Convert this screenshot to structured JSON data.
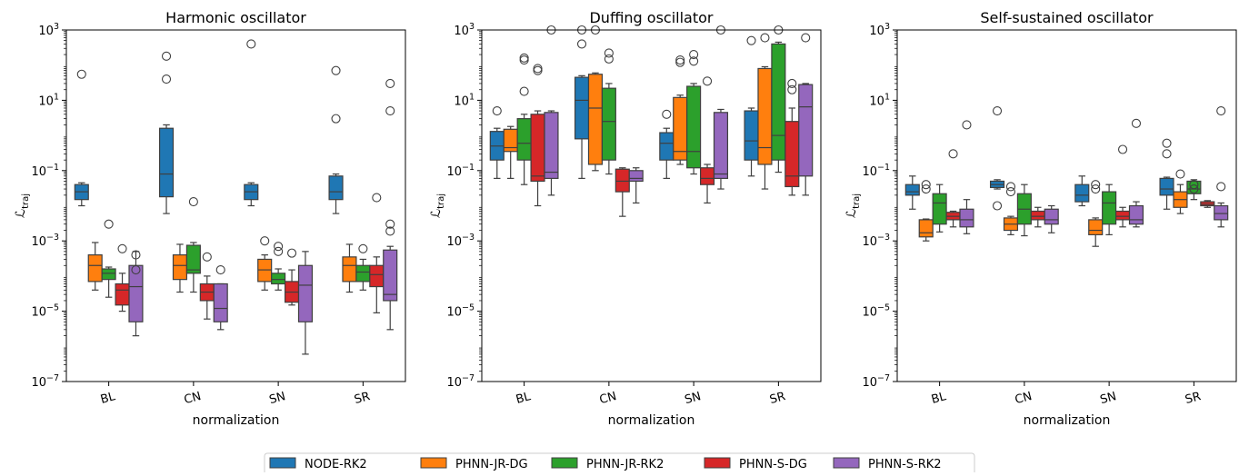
{
  "xlabel": "normalization",
  "ylabel_main": "ℒ",
  "ylabel_sub": "traj",
  "categories": [
    "BL",
    "CN",
    "SN",
    "SR"
  ],
  "yticks": [
    {
      "mant": "10",
      "exp": "3"
    },
    {
      "mant": "10",
      "exp": "1"
    },
    {
      "mant": "10",
      "exp": "−1"
    },
    {
      "mant": "10",
      "exp": "−3"
    },
    {
      "mant": "10",
      "exp": "−5"
    },
    {
      "mant": "10",
      "exp": "−7"
    }
  ],
  "legend": [
    {
      "label": "NODE-RK2",
      "color": "#1f77b4"
    },
    {
      "label": "PHNN-JR-DG",
      "color": "#ff7f0e"
    },
    {
      "label": "PHNN-JR-RK2",
      "color": "#2ca02c"
    },
    {
      "label": "PHNN-S-DG",
      "color": "#d62728"
    },
    {
      "label": "PHNN-S-RK2",
      "color": "#9467bd"
    }
  ],
  "chart_data": [
    {
      "type": "box",
      "title": "Harmonic oscillator",
      "xlabel": "normalization",
      "ylabel": "ℒ_traj",
      "yscale": "log",
      "ylim": [
        1e-07,
        1000
      ],
      "categories": [
        "BL",
        "CN",
        "SN",
        "SR"
      ],
      "series": [
        {
          "name": "NODE-RK2",
          "boxes": [
            {
              "whislo": 0.01,
              "q1": 0.015,
              "med": 0.025,
              "q3": 0.04,
              "whishi": 0.045,
              "fliers": [
                55
              ]
            },
            {
              "whislo": 0.006,
              "q1": 0.018,
              "med": 0.08,
              "q3": 1.6,
              "whishi": 2,
              "fliers": [
                40,
                180
              ]
            },
            {
              "whislo": 0.01,
              "q1": 0.015,
              "med": 0.025,
              "q3": 0.04,
              "whishi": 0.045,
              "fliers": [
                400
              ]
            },
            {
              "whislo": 0.006,
              "q1": 0.015,
              "med": 0.025,
              "q3": 0.07,
              "whishi": 0.08,
              "fliers": [
                3,
                70
              ]
            }
          ]
        },
        {
          "name": "PHNN-JR-DG",
          "boxes": [
            {
              "whislo": 4e-05,
              "q1": 7e-05,
              "med": 0.0002,
              "q3": 0.0004,
              "whishi": 0.0009,
              "fliers": []
            },
            {
              "whislo": 3.5e-05,
              "q1": 8e-05,
              "med": 0.0002,
              "q3": 0.0004,
              "whishi": 0.0008,
              "fliers": []
            },
            {
              "whislo": 4e-05,
              "q1": 7e-05,
              "med": 0.00015,
              "q3": 0.0003,
              "whishi": 0.0004,
              "fliers": [
                0.001
              ]
            },
            {
              "whislo": 3.5e-05,
              "q1": 7e-05,
              "med": 0.0002,
              "q3": 0.00035,
              "whishi": 0.0008,
              "fliers": []
            }
          ]
        },
        {
          "name": "PHNN-JR-RK2",
          "boxes": [
            {
              "whislo": 2.5e-05,
              "q1": 8e-05,
              "med": 0.00012,
              "q3": 0.00016,
              "whishi": 0.00018,
              "fliers": [
                0.003
              ]
            },
            {
              "whislo": 3.5e-05,
              "q1": 0.00012,
              "med": 0.00015,
              "q3": 0.00075,
              "whishi": 0.0009,
              "fliers": [
                0.013
              ]
            },
            {
              "whislo": 4e-05,
              "q1": 6e-05,
              "med": 8e-05,
              "q3": 0.00012,
              "whishi": 0.00016,
              "fliers": [
                0.0007,
                0.0005
              ]
            },
            {
              "whislo": 4e-05,
              "q1": 7e-05,
              "med": 0.00013,
              "q3": 0.0002,
              "whishi": 0.0003,
              "fliers": [
                0.0006
              ]
            }
          ]
        },
        {
          "name": "PHNN-S-DG",
          "boxes": [
            {
              "whislo": 1e-05,
              "q1": 1.5e-05,
              "med": 4e-05,
              "q3": 6e-05,
              "whishi": 0.00012,
              "fliers": [
                0.0006
              ]
            },
            {
              "whislo": 6e-06,
              "q1": 2e-05,
              "med": 3.5e-05,
              "q3": 6e-05,
              "whishi": 0.0001,
              "fliers": [
                0.00035
              ]
            },
            {
              "whislo": 1.5e-05,
              "q1": 1.8e-05,
              "med": 3.5e-05,
              "q3": 7e-05,
              "whishi": 0.00015,
              "fliers": [
                0.00045
              ]
            },
            {
              "whislo": 9e-06,
              "q1": 5e-05,
              "med": 0.00011,
              "q3": 0.0002,
              "whishi": 0.00035,
              "fliers": [
                0.017
              ]
            }
          ]
        },
        {
          "name": "PHNN-S-RK2",
          "boxes": [
            {
              "whislo": 2e-06,
              "q1": 5e-06,
              "med": 5e-05,
              "q3": 0.0002,
              "whishi": 0.0005,
              "fliers": [
                0.00015,
                0.0004
              ]
            },
            {
              "whislo": 3e-06,
              "q1": 5e-06,
              "med": 1.2e-05,
              "q3": 6e-05,
              "whishi": 6e-05,
              "fliers": [
                0.00015
              ]
            },
            {
              "whislo": 6e-07,
              "q1": 5e-06,
              "med": 5.5e-05,
              "q3": 0.0002,
              "whishi": 0.0005,
              "fliers": []
            },
            {
              "whislo": 3e-06,
              "q1": 2e-05,
              "med": 3e-05,
              "q3": 0.00055,
              "whishi": 0.0007,
              "fliers": [
                0.003,
                0.0019,
                5,
                30
              ]
            }
          ]
        }
      ]
    },
    {
      "type": "box",
      "title": "Duffing oscillator",
      "xlabel": "normalization",
      "ylabel": "ℒ_traj",
      "yscale": "log",
      "ylim": [
        1e-07,
        1000
      ],
      "categories": [
        "BL",
        "CN",
        "SN",
        "SR"
      ],
      "series": [
        {
          "name": "NODE-RK2",
          "boxes": [
            {
              "whislo": 0.06,
              "q1": 0.2,
              "med": 0.5,
              "q3": 1.3,
              "whishi": 1.6,
              "fliers": [
                5
              ]
            },
            {
              "whislo": 0.06,
              "q1": 0.8,
              "med": 10,
              "q3": 45,
              "whishi": 50,
              "fliers": [
                400,
                1000
              ]
            },
            {
              "whislo": 0.06,
              "q1": 0.2,
              "med": 0.6,
              "q3": 1.2,
              "whishi": 1.6,
              "fliers": [
                4
              ]
            },
            {
              "whislo": 0.07,
              "q1": 0.2,
              "med": 0.7,
              "q3": 5,
              "whishi": 6,
              "fliers": [
                500
              ]
            }
          ]
        },
        {
          "name": "PHNN-JR-DG",
          "boxes": [
            {
              "whislo": 0.06,
              "q1": 0.35,
              "med": 0.45,
              "q3": 1.5,
              "whishi": 1.8,
              "fliers": []
            },
            {
              "whislo": 0.1,
              "q1": 0.15,
              "med": 6,
              "q3": 55,
              "whishi": 60,
              "fliers": [
                1000
              ]
            },
            {
              "whislo": 0.15,
              "q1": 0.2,
              "med": 0.35,
              "q3": 12,
              "whishi": 14,
              "fliers": [
                120,
                140
              ]
            },
            {
              "whislo": 0.03,
              "q1": 0.15,
              "med": 0.45,
              "q3": 80,
              "whishi": 90,
              "fliers": [
                600
              ]
            }
          ]
        },
        {
          "name": "PHNN-JR-RK2",
          "boxes": [
            {
              "whislo": 0.04,
              "q1": 0.2,
              "med": 0.6,
              "q3": 3,
              "whishi": 4,
              "fliers": [
                18,
                140,
                160
              ]
            },
            {
              "whislo": 0.08,
              "q1": 0.2,
              "med": 2.5,
              "q3": 22,
              "whishi": 30,
              "fliers": [
                220,
                150
              ]
            },
            {
              "whislo": 0.08,
              "q1": 0.12,
              "med": 0.35,
              "q3": 25,
              "whishi": 30,
              "fliers": [
                130,
                200
              ]
            },
            {
              "whislo": 0.09,
              "q1": 0.2,
              "med": 1,
              "q3": 400,
              "whishi": 450,
              "fliers": [
                1000
              ]
            }
          ]
        },
        {
          "name": "PHNN-S-DG",
          "boxes": [
            {
              "whislo": 0.01,
              "q1": 0.05,
              "med": 0.07,
              "q3": 4,
              "whishi": 5,
              "fliers": [
                70,
                80
              ]
            },
            {
              "whislo": 0.005,
              "q1": 0.025,
              "med": 0.05,
              "q3": 0.11,
              "whishi": 0.12,
              "fliers": []
            },
            {
              "whislo": 0.012,
              "q1": 0.04,
              "med": 0.06,
              "q3": 0.12,
              "whishi": 0.15,
              "fliers": [
                35
              ]
            },
            {
              "whislo": 0.02,
              "q1": 0.035,
              "med": 0.07,
              "q3": 2.5,
              "whishi": 6,
              "fliers": [
                30,
                20
              ]
            }
          ]
        },
        {
          "name": "PHNN-S-RK2",
          "boxes": [
            {
              "whislo": 0.02,
              "q1": 0.06,
              "med": 0.09,
              "q3": 4.5,
              "whishi": 5,
              "fliers": [
                1000
              ]
            },
            {
              "whislo": 0.012,
              "q1": 0.05,
              "med": 0.06,
              "q3": 0.1,
              "whishi": 0.12,
              "fliers": []
            },
            {
              "whislo": 0.03,
              "q1": 0.06,
              "med": 0.08,
              "q3": 4.5,
              "whishi": 5.5,
              "fliers": [
                1000
              ]
            },
            {
              "whislo": 0.02,
              "q1": 0.07,
              "med": 6.5,
              "q3": 28,
              "whishi": 30,
              "fliers": [
                600
              ]
            }
          ]
        }
      ]
    },
    {
      "type": "box",
      "title": "Self-sustained oscillator",
      "xlabel": "normalization",
      "ylabel": "ℒ_traj",
      "yscale": "log",
      "ylim": [
        1e-07,
        1000
      ],
      "categories": [
        "BL",
        "CN",
        "SN",
        "SR"
      ],
      "series": [
        {
          "name": "NODE-RK2",
          "boxes": [
            {
              "whislo": 0.008,
              "q1": 0.02,
              "med": 0.025,
              "q3": 0.04,
              "whishi": 0.07,
              "fliers": []
            },
            {
              "whislo": 0.03,
              "q1": 0.033,
              "med": 0.04,
              "q3": 0.05,
              "whishi": 0.055,
              "fliers": [
                0.01,
                5
              ]
            },
            {
              "whislo": 0.01,
              "q1": 0.013,
              "med": 0.02,
              "q3": 0.04,
              "whishi": 0.07,
              "fliers": []
            },
            {
              "whislo": 0.008,
              "q1": 0.02,
              "med": 0.03,
              "q3": 0.06,
              "whishi": 0.065,
              "fliers": [
                0.3,
                0.6
              ]
            }
          ]
        },
        {
          "name": "PHNN-JR-DG",
          "boxes": [
            {
              "whislo": 0.001,
              "q1": 0.0013,
              "med": 0.0017,
              "q3": 0.004,
              "whishi": 0.0042,
              "fliers": [
                0.04,
                0.03
              ]
            },
            {
              "whislo": 0.0015,
              "q1": 0.002,
              "med": 0.003,
              "q3": 0.0045,
              "whishi": 0.005,
              "fliers": [
                0.035,
                0.025
              ]
            },
            {
              "whislo": 0.0007,
              "q1": 0.0015,
              "med": 0.002,
              "q3": 0.004,
              "whishi": 0.0045,
              "fliers": [
                0.04,
                0.03
              ]
            },
            {
              "whislo": 0.006,
              "q1": 0.009,
              "med": 0.015,
              "q3": 0.025,
              "whishi": 0.04,
              "fliers": [
                0.08
              ]
            }
          ]
        },
        {
          "name": "PHNN-JR-RK2",
          "boxes": [
            {
              "whislo": 0.0018,
              "q1": 0.003,
              "med": 0.012,
              "q3": 0.022,
              "whishi": 0.04,
              "fliers": []
            },
            {
              "whislo": 0.0014,
              "q1": 0.003,
              "med": 0.008,
              "q3": 0.022,
              "whishi": 0.04,
              "fliers": []
            },
            {
              "whislo": 0.0015,
              "q1": 0.003,
              "med": 0.012,
              "q3": 0.025,
              "whishi": 0.04,
              "fliers": []
            },
            {
              "whislo": 0.015,
              "q1": 0.022,
              "med": 0.03,
              "q3": 0.05,
              "whishi": 0.055,
              "fliers": [
                0.04,
                0.03
              ]
            }
          ]
        },
        {
          "name": "PHNN-S-DG",
          "boxes": [
            {
              "whislo": 0.0025,
              "q1": 0.004,
              "med": 0.005,
              "q3": 0.0065,
              "whishi": 0.007,
              "fliers": [
                0.3
              ]
            },
            {
              "whislo": 0.0025,
              "q1": 0.004,
              "med": 0.005,
              "q3": 0.007,
              "whishi": 0.009,
              "fliers": []
            },
            {
              "whislo": 0.0025,
              "q1": 0.004,
              "med": 0.005,
              "q3": 0.007,
              "whishi": 0.009,
              "fliers": [
                0.4
              ]
            },
            {
              "whislo": 0.009,
              "q1": 0.01,
              "med": 0.011,
              "q3": 0.013,
              "whishi": 0.014,
              "fliers": []
            }
          ]
        },
        {
          "name": "PHNN-S-RK2",
          "boxes": [
            {
              "whislo": 0.0016,
              "q1": 0.0025,
              "med": 0.004,
              "q3": 0.008,
              "whishi": 0.015,
              "fliers": [
                2
              ]
            },
            {
              "whislo": 0.0017,
              "q1": 0.003,
              "med": 0.004,
              "q3": 0.008,
              "whishi": 0.01,
              "fliers": []
            },
            {
              "whislo": 0.0025,
              "q1": 0.003,
              "med": 0.004,
              "q3": 0.01,
              "whishi": 0.013,
              "fliers": [
                2.2
              ]
            },
            {
              "whislo": 0.0025,
              "q1": 0.004,
              "med": 0.006,
              "q3": 0.01,
              "whishi": 0.012,
              "fliers": [
                0.035,
                5
              ]
            }
          ]
        }
      ]
    }
  ]
}
